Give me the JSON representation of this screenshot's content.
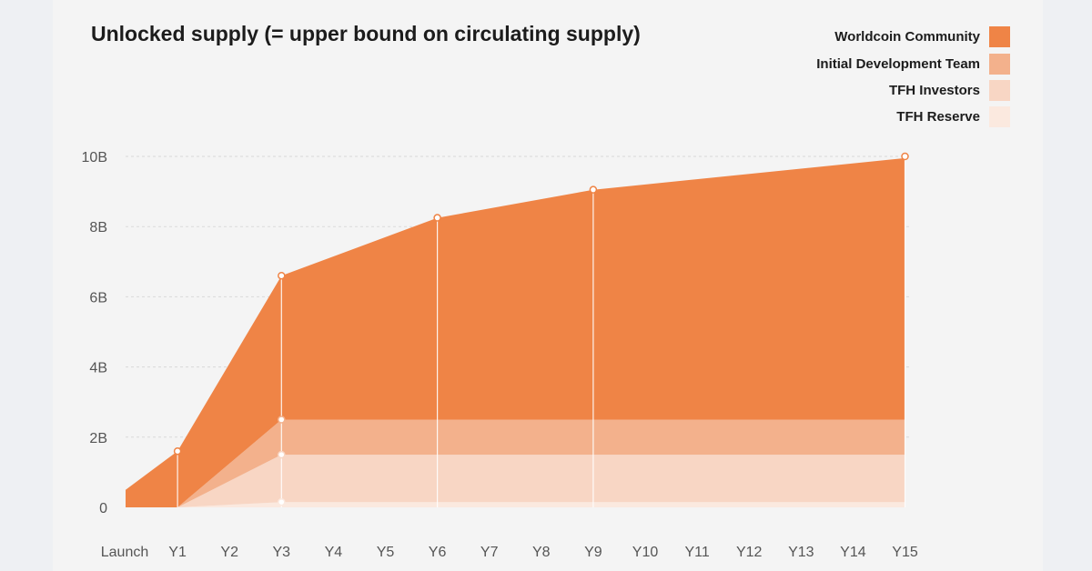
{
  "colors": {
    "community": "#ef8446",
    "dev_team": "#f3b18c",
    "investors": "#f8d6c4",
    "reserve": "#fbe9df",
    "background": "#f4f4f4"
  },
  "chart_data": {
    "type": "area",
    "stacked": true,
    "title": "Unlocked supply (= upper bound on circulating supply)",
    "categories": [
      "Launch",
      "Y1",
      "Y2",
      "Y3",
      "Y4",
      "Y5",
      "Y6",
      "Y7",
      "Y8",
      "Y9",
      "Y10",
      "Y11",
      "Y12",
      "Y13",
      "Y14",
      "Y15"
    ],
    "y_ticks": [
      "0",
      "2B",
      "4B",
      "6B",
      "8B",
      "10B"
    ],
    "ylim": [
      0,
      10000000000
    ],
    "grid": "horizontal dashed",
    "legend_position": "top-right",
    "x": [
      0,
      1,
      3,
      6,
      9,
      15
    ],
    "series": [
      {
        "name": "TFH Reserve",
        "values": [
          0,
          0,
          150000000,
          150000000,
          150000000,
          150000000
        ]
      },
      {
        "name": "TFH Investors",
        "values": [
          0,
          0,
          1350000000,
          1350000000,
          1350000000,
          1350000000
        ]
      },
      {
        "name": "Initial Development Team",
        "values": [
          0,
          0,
          1000000000,
          1000000000,
          1000000000,
          1000000000
        ]
      },
      {
        "name": "Worldcoin Community",
        "values": [
          500000000,
          1600000000,
          4100000000,
          5750000000,
          6550000000,
          7450000000
        ]
      }
    ],
    "totals": [
      500000000,
      1600000000,
      6600000000,
      8250000000,
      9050000000,
      10000000000
    ],
    "markers_x": [
      1,
      3,
      6,
      9,
      15
    ]
  },
  "legend": [
    {
      "label": "Worldcoin Community",
      "color": "#ef8446"
    },
    {
      "label": "Initial Development Team",
      "color": "#f3b18c"
    },
    {
      "label": "TFH Investors",
      "color": "#f8d6c4"
    },
    {
      "label": "TFH Reserve",
      "color": "#fbe9df"
    }
  ]
}
